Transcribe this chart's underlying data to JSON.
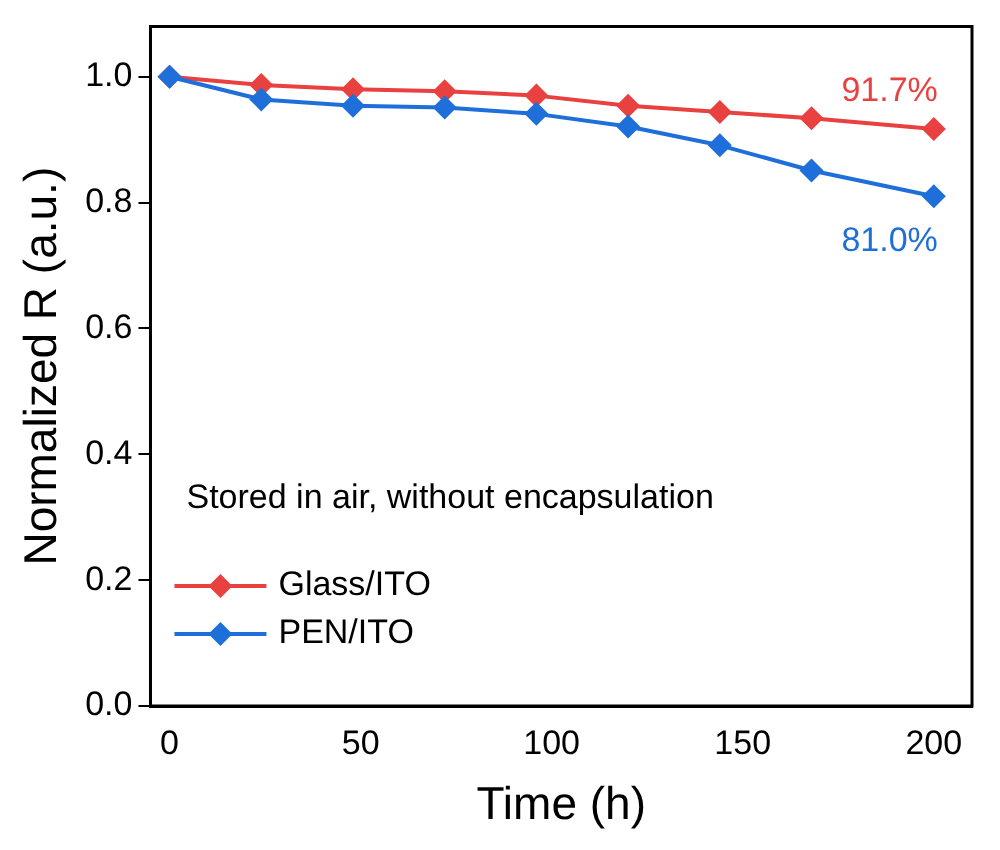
{
  "chart_data": {
    "type": "line",
    "xlabel": "Time (h)",
    "ylabel": "Normalized R (a.u.)",
    "x": [
      0,
      24,
      48,
      72,
      96,
      120,
      144,
      168,
      200
    ],
    "series": [
      {
        "name": "Glass/ITO",
        "color": "#e8413f",
        "values": [
          1.0,
          0.987,
          0.98,
          0.977,
          0.97,
          0.954,
          0.944,
          0.934,
          0.917
        ]
      },
      {
        "name": "PEN/ITO",
        "color": "#1e6fd9",
        "values": [
          1.0,
          0.964,
          0.954,
          0.951,
          0.941,
          0.921,
          0.891,
          0.851,
          0.81
        ]
      }
    ],
    "xlim": [
      -5,
      210
    ],
    "xticks": [
      0,
      50,
      100,
      150,
      200
    ],
    "ylim": [
      0,
      1.08
    ],
    "yticks": [
      {
        "value": 0,
        "label": "0.0"
      },
      0.2,
      0.4,
      0.6,
      0.8,
      {
        "value": 1,
        "label": "1.0"
      }
    ],
    "annotations": [
      {
        "text": "91.7%",
        "x": 200,
        "y": 0.917
      },
      {
        "text": "81.0%",
        "x": 200,
        "y": 0.81
      },
      "Stored in air, without encapsulation"
    ],
    "legend": "bottom left",
    "marker": "diamond",
    "line_style": "solid",
    "grid": false
  }
}
